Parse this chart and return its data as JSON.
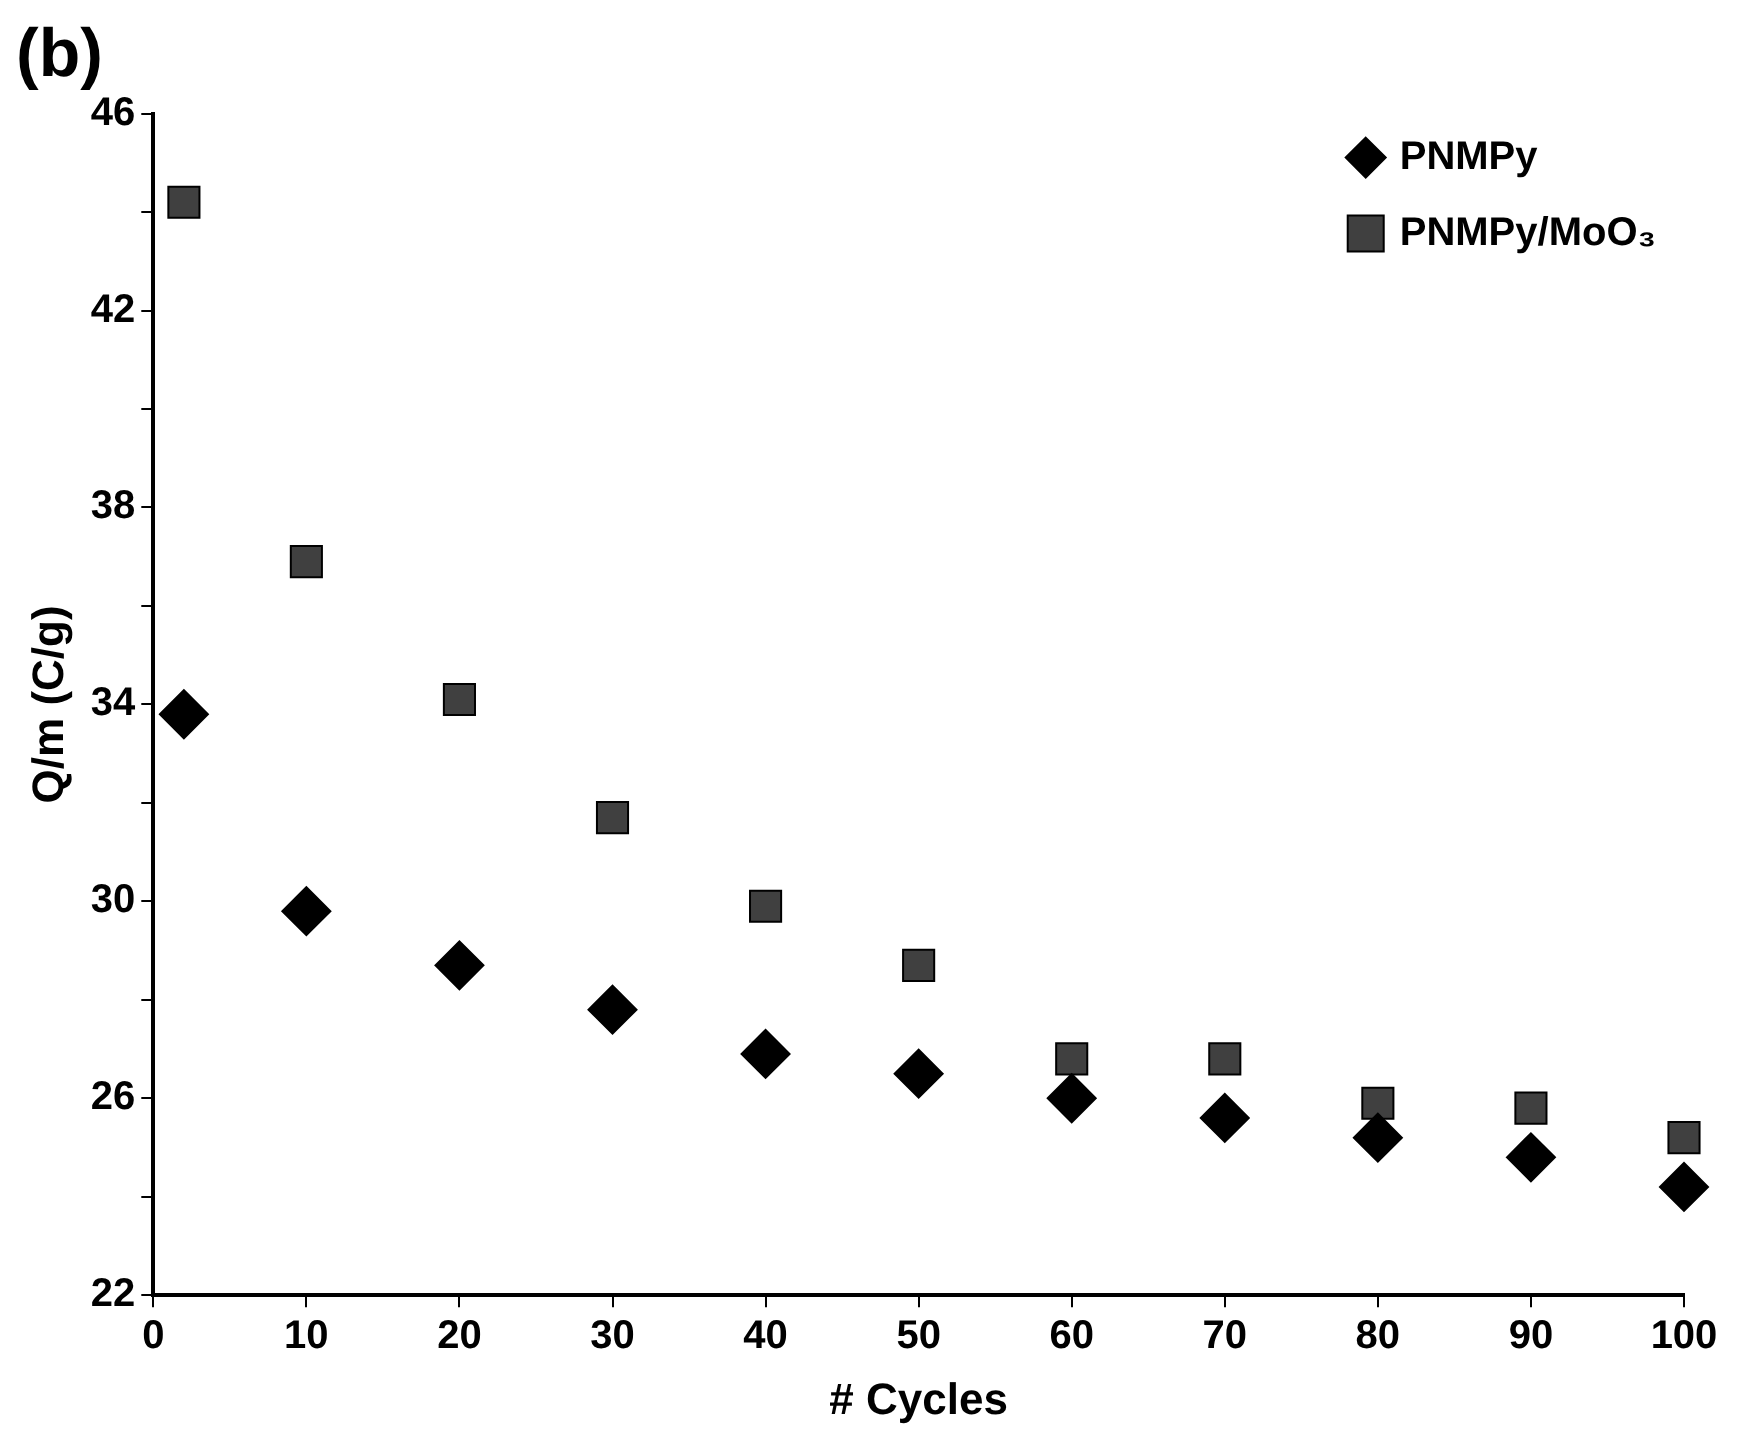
{
  "chart_data": {
    "type": "scatter",
    "title": "(b)",
    "xlabel": "# Cycles",
    "ylabel": "Q/m (C/g)",
    "x": [
      2,
      10,
      20,
      30,
      40,
      50,
      60,
      70,
      80,
      90,
      100
    ],
    "series": [
      {
        "name": "PNMPy",
        "color": "#000000",
        "marker": "diamond",
        "values": [
          33.8,
          29.8,
          28.7,
          27.8,
          26.9,
          26.5,
          26.0,
          25.6,
          25.2,
          24.8,
          24.2
        ]
      },
      {
        "name": "PNMPy/MoO₃",
        "color": "#404040",
        "marker": "square",
        "values": [
          44.2,
          36.9,
          34.1,
          31.7,
          29.9,
          28.7,
          26.8,
          26.8,
          25.9,
          25.8,
          25.2
        ]
      }
    ],
    "xlim": [
      0,
      100
    ],
    "xticks": [
      0,
      10,
      20,
      30,
      40,
      50,
      60,
      70,
      80,
      90,
      100
    ],
    "ylim": [
      22,
      46
    ],
    "yticks": [
      22,
      {
        "value": 24,
        "label": null
      },
      26,
      {
        "value": 28,
        "label": null
      },
      30,
      {
        "value": 32,
        "label": null
      },
      34,
      {
        "value": 36,
        "label": null
      },
      38,
      {
        "value": 40,
        "label": null
      },
      42,
      {
        "value": 44,
        "label": null
      },
      46
    ],
    "grid": false,
    "legend": "top right"
  }
}
